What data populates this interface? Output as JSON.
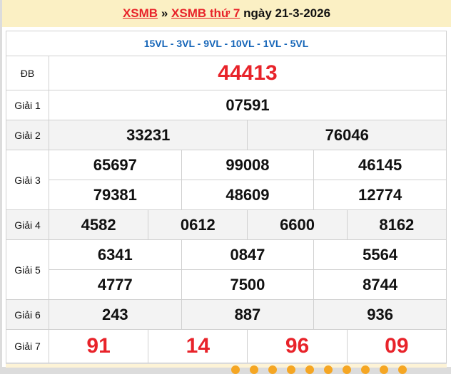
{
  "header": {
    "link1": "XSMB",
    "sep": "»",
    "link2": "XSMB thứ 7",
    "date_text": "ngày 21-3-2026"
  },
  "codes": "15VL - 3VL - 9VL - 10VL - 1VL - 5VL",
  "prizes": {
    "db": {
      "label": "ĐB",
      "values": [
        "44413"
      ]
    },
    "g1": {
      "label": "Giải 1",
      "values": [
        "07591"
      ]
    },
    "g2": {
      "label": "Giải 2",
      "values": [
        "33231",
        "76046"
      ]
    },
    "g3": {
      "label": "Giải 3",
      "values": [
        "65697",
        "99008",
        "46145",
        "79381",
        "48609",
        "12774"
      ]
    },
    "g4": {
      "label": "Giải 4",
      "values": [
        "4582",
        "0612",
        "6600",
        "8162"
      ]
    },
    "g5": {
      "label": "Giải 5",
      "values": [
        "6341",
        "0847",
        "5564",
        "4777",
        "7500",
        "8744"
      ]
    },
    "g6": {
      "label": "Giải 6",
      "values": [
        "243",
        "887",
        "936"
      ]
    },
    "g7": {
      "label": "Giải 7",
      "values": [
        "91",
        "14",
        "96",
        "09"
      ]
    }
  },
  "colors": {
    "accent_red": "#e8232a",
    "code_blue": "#1565b8",
    "header_bg": "#fbf0c4"
  }
}
